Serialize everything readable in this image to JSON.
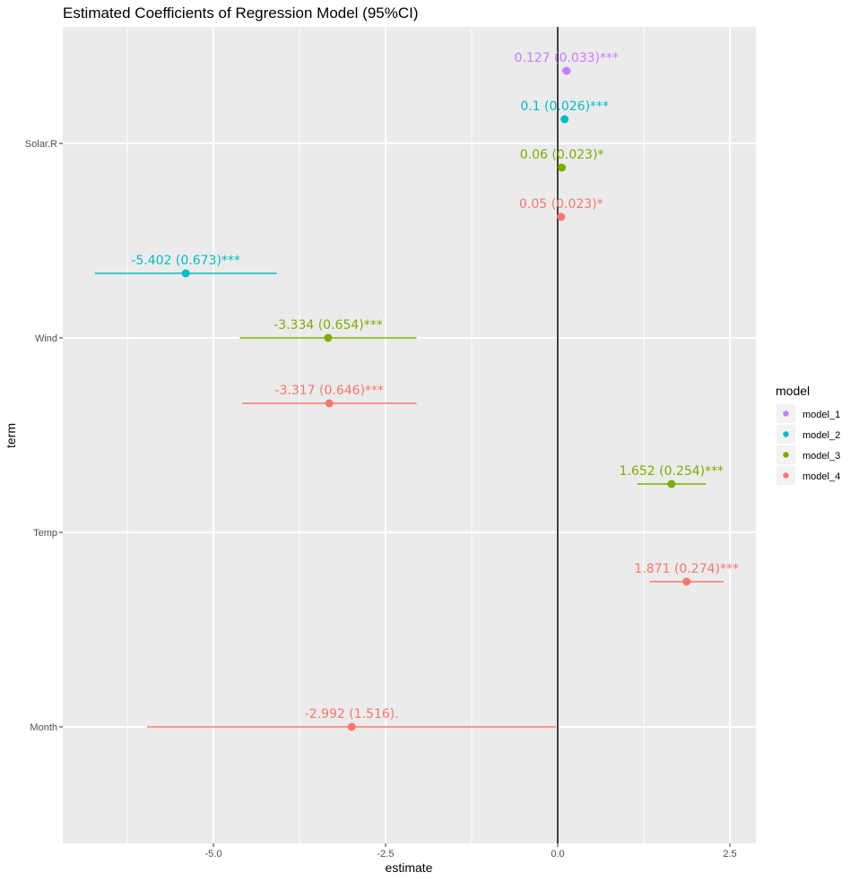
{
  "chart_data": {
    "type": "forest-plot",
    "title": "Estimated Coefficients of Regression Model (95%CI)",
    "xlabel": "estimate",
    "ylabel": "term",
    "xlim": [
      -7.0,
      2.6
    ],
    "x_ticks": [
      -5.0,
      -2.5,
      0.0,
      2.5
    ],
    "x_tick_labels": [
      "-5.0",
      "-2.5",
      "0.0",
      "2.5"
    ],
    "terms": [
      "Solar.R",
      "Wind",
      "Temp",
      "Month"
    ],
    "reference_line": 0,
    "grid": true,
    "legend": {
      "title": "model",
      "placement": "right",
      "entries": [
        "model_1",
        "model_2",
        "model_3",
        "model_4"
      ]
    },
    "colors": {
      "model_1": "#C77CFF",
      "model_2": "#00BFC4",
      "model_3": "#7CAE00",
      "model_4": "#F8766D"
    },
    "points": [
      {
        "model": "model_1",
        "term": "Solar.R",
        "estimate": 0.127,
        "ci": [
          0.062,
          0.192
        ],
        "label": "0.127 (0.033)***"
      },
      {
        "model": "model_2",
        "term": "Solar.R",
        "estimate": 0.1,
        "ci": [
          0.049,
          0.151
        ],
        "label": "0.1 (0.026)***"
      },
      {
        "model": "model_3",
        "term": "Solar.R",
        "estimate": 0.06,
        "ci": [
          0.015,
          0.105
        ],
        "label": "0.06 (0.023)*"
      },
      {
        "model": "model_4",
        "term": "Solar.R",
        "estimate": 0.05,
        "ci": [
          0.005,
          0.095
        ],
        "label": "0.05 (0.023)*"
      },
      {
        "model": "model_2",
        "term": "Wind",
        "estimate": -5.402,
        "ci": [
          -6.72,
          -4.08
        ],
        "label": "-5.402 (0.673)***"
      },
      {
        "model": "model_3",
        "term": "Wind",
        "estimate": -3.334,
        "ci": [
          -4.616,
          -2.052
        ],
        "label": "-3.334 (0.654)***"
      },
      {
        "model": "model_4",
        "term": "Wind",
        "estimate": -3.317,
        "ci": [
          -4.583,
          -2.051
        ],
        "label": "-3.317 (0.646)***"
      },
      {
        "model": "model_3",
        "term": "Temp",
        "estimate": 1.652,
        "ci": [
          1.154,
          2.15
        ],
        "label": "1.652 (0.254)***"
      },
      {
        "model": "model_4",
        "term": "Temp",
        "estimate": 1.871,
        "ci": [
          1.334,
          2.408
        ],
        "label": "1.871 (0.274)***"
      },
      {
        "model": "model_4",
        "term": "Month",
        "estimate": -2.992,
        "ci": [
          -5.963,
          -0.021
        ],
        "label": "-2.992 (1.516)."
      }
    ]
  }
}
